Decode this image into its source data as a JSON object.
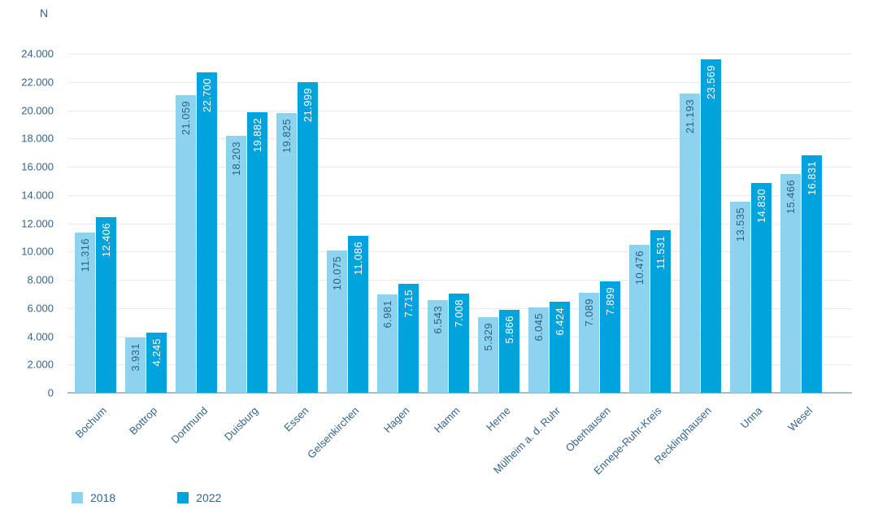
{
  "chart_data": {
    "type": "bar",
    "title": "",
    "xlabel": "",
    "ylabel": "N",
    "categories": [
      "Bochum",
      "Bottrop",
      "Dortmund",
      "Duisburg",
      "Essen",
      "Gelsenkirchen",
      "Hagen",
      "Hamm",
      "Herne",
      "Mülheim a. d. Ruhr",
      "Oberhausen",
      "Ennepe-Ruhr-Kreis",
      "Recklinghausen",
      "Unna",
      "Wesel"
    ],
    "series": [
      {
        "name": "2018",
        "color": "#8CD3EF",
        "label_color": "#2E5E86",
        "values": [
          11316,
          3931,
          21059,
          18203,
          19825,
          10075,
          6981,
          6543,
          5329,
          6045,
          7089,
          10476,
          21193,
          13535,
          15466
        ],
        "labels": [
          "11.316",
          "3.931",
          "21.059",
          "18.203",
          "19.825",
          "10.075",
          "6.981",
          "6.543",
          "5.329",
          "6.045",
          "7.089",
          "10.476",
          "21.193",
          "13.535",
          "15.466"
        ]
      },
      {
        "name": "2022",
        "color": "#00A3DC",
        "label_color": "#FFFFFF",
        "values": [
          12406,
          4245,
          22700,
          19882,
          21999,
          11086,
          7715,
          7008,
          5866,
          6424,
          7899,
          11531,
          23569,
          14830,
          16831
        ],
        "labels": [
          "12.406",
          "4.245",
          "22.700",
          "19.882",
          "21.999",
          "11.086",
          "7.715",
          "7.008",
          "5.866",
          "6.424",
          "7.899",
          "11.531",
          "23.569",
          "14.830",
          "16.831"
        ]
      }
    ],
    "ylim": [
      0,
      24000
    ],
    "yticks": [
      {
        "value": 0,
        "label": "0"
      },
      {
        "value": 2000,
        "label": "2.000"
      },
      {
        "value": 4000,
        "label": "4.000"
      },
      {
        "value": 6000,
        "label": "6.000"
      },
      {
        "value": 8000,
        "label": "8.000"
      },
      {
        "value": 10000,
        "label": "10.000"
      },
      {
        "value": 12000,
        "label": "12.000"
      },
      {
        "value": 14000,
        "label": "14.000"
      },
      {
        "value": 16000,
        "label": "16.000"
      },
      {
        "value": 18000,
        "label": "18.000"
      },
      {
        "value": 20000,
        "label": "20.000"
      },
      {
        "value": 22000,
        "label": "22.000"
      },
      {
        "value": 24000,
        "label": "24.000"
      }
    ],
    "grid": "horizontal",
    "legend_position": "bottom-left",
    "colors": {
      "axis_text": "#34648C",
      "gridline": "#E7EBEF",
      "baseline": "#A6BBCA",
      "series_2018": "#8CD3EF",
      "series_2022": "#00A3DC"
    }
  }
}
